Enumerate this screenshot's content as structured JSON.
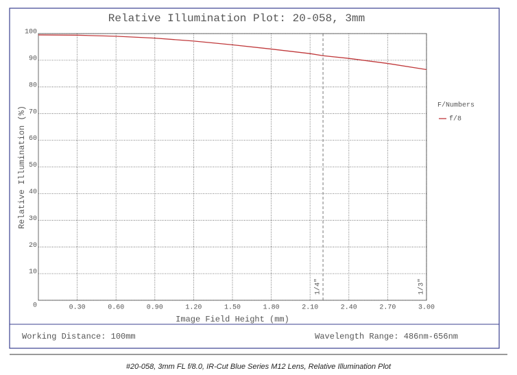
{
  "chart_data": {
    "type": "line",
    "title": "Relative Illumination Plot: 20-058, 3mm",
    "x_label": "Image Field Height (mm)",
    "y_label": "Relative Illumination (%)",
    "x": [
      0,
      0.3,
      0.6,
      0.9,
      1.2,
      1.5,
      1.8,
      2.1,
      2.2,
      2.4,
      2.7,
      3.0
    ],
    "series": [
      {
        "name": "f/8",
        "color": "#c0393b",
        "values": [
          99.5,
          99.4,
          99,
          98.3,
          97.2,
          95.8,
          94.2,
          92.5,
          91.7,
          90.7,
          88.8,
          86.5
        ]
      }
    ],
    "xlim": [
      0,
      3
    ],
    "ylim": [
      0,
      100
    ],
    "xticks": [
      {
        "value": 0.3,
        "label": "0.30"
      },
      {
        "value": 0.6,
        "label": "0.60"
      },
      {
        "value": 0.9,
        "label": "0.90"
      },
      {
        "value": 1.2,
        "label": "1.20"
      },
      {
        "value": 1.5,
        "label": "1.50"
      },
      {
        "value": 1.8,
        "label": "1.80"
      },
      {
        "value": 2.1,
        "label": "2.10"
      },
      {
        "value": 2.4,
        "label": "2.40"
      },
      {
        "value": 2.7,
        "label": "2.70"
      },
      {
        "value": 3,
        "label": "3.00"
      }
    ],
    "yticks": [
      0,
      10,
      20,
      30,
      40,
      50,
      60,
      70,
      80,
      90,
      100
    ],
    "grid": true,
    "legend_title": "F/Numbers",
    "legend": "right",
    "markers": [
      {
        "x": 2.2,
        "label": "1/4\""
      },
      {
        "x": 3,
        "label": "1/3\""
      }
    ]
  },
  "footer": {
    "left": "Working Distance: 100mm",
    "right": "Wavelength Range: 486nm-656nm"
  },
  "caption": "#20-058, 3mm FL f/8.0, IR-Cut Blue Series M12 Lens, Relative Illumination Plot"
}
